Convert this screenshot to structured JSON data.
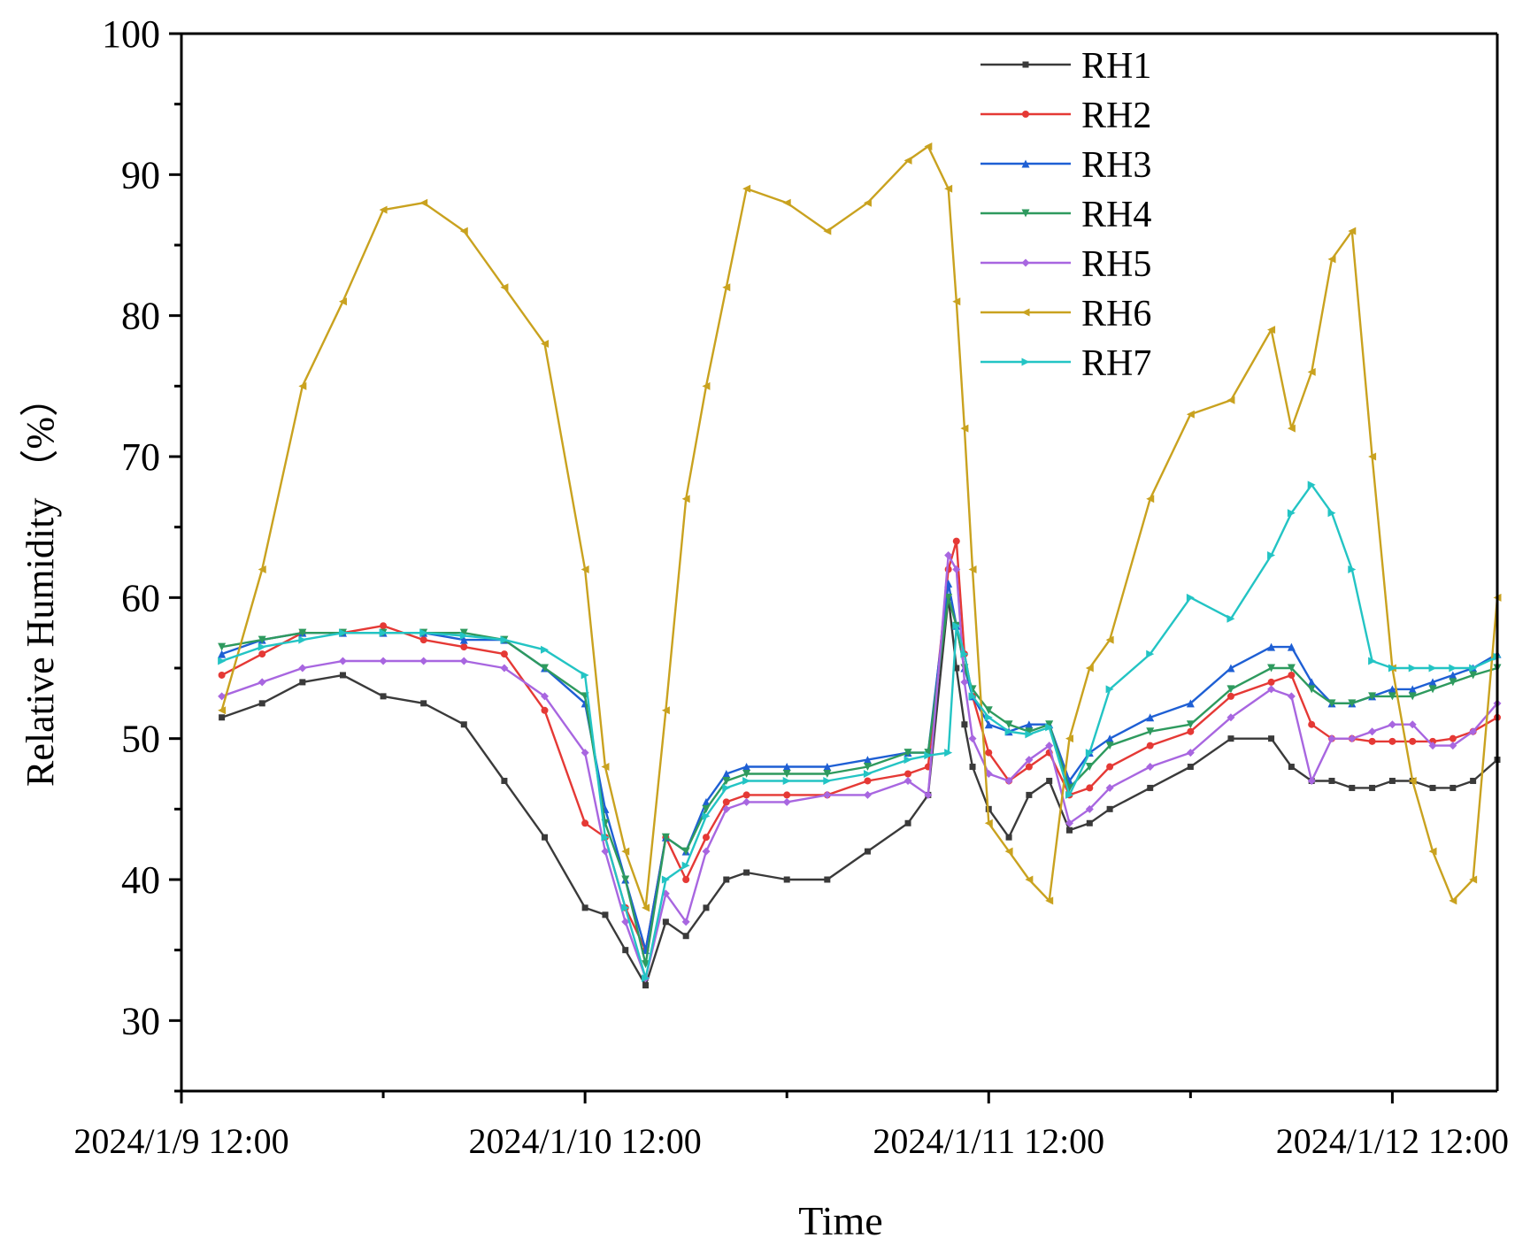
{
  "chart_data": {
    "type": "line",
    "title": "",
    "xlabel": "Time",
    "ylabel": "Relative Humidity （%）",
    "ylim": [
      25,
      100
    ],
    "yticks": [
      30,
      40,
      50,
      60,
      70,
      80,
      90,
      100
    ],
    "xlim": [
      0,
      3.26
    ],
    "x_unit": "days since 2024/1/9 12:00",
    "xticks": [
      {
        "x": 0,
        "label": "2024/1/9 12:00"
      },
      {
        "x": 1,
        "label": "2024/1/10 12:00"
      },
      {
        "x": 2,
        "label": "2024/1/11 12:00"
      },
      {
        "x": 3,
        "label": "2024/1/12 12:00"
      }
    ],
    "legend_position": "top-right",
    "grid": false,
    "x": [
      0.1,
      0.2,
      0.3,
      0.4,
      0.5,
      0.6,
      0.7,
      0.8,
      0.9,
      1.0,
      1.05,
      1.1,
      1.15,
      1.2,
      1.25,
      1.3,
      1.35,
      1.4,
      1.5,
      1.6,
      1.7,
      1.8,
      1.85,
      1.9,
      1.92,
      1.94,
      1.96,
      2.0,
      2.05,
      2.1,
      2.15,
      2.2,
      2.25,
      2.3,
      2.4,
      2.5,
      2.6,
      2.7,
      2.75,
      2.8,
      2.85,
      2.9,
      2.95,
      3.0,
      3.05,
      3.1,
      3.15,
      3.2,
      3.26
    ],
    "series": [
      {
        "name": "RH1",
        "color": "#3a3a3a",
        "marker": "square",
        "values": [
          51.5,
          52.5,
          54,
          54.5,
          53,
          52.5,
          51,
          47,
          43,
          38,
          37.5,
          35,
          32.5,
          37,
          36,
          38,
          40,
          40.5,
          40,
          40,
          42,
          44,
          46,
          60,
          55,
          51,
          48,
          45,
          43,
          46,
          47,
          43.5,
          44,
          45,
          46.5,
          48,
          50,
          50,
          48,
          47,
          47,
          46.5,
          46.5,
          47,
          47,
          46.5,
          46.5,
          47,
          48.5
        ]
      },
      {
        "name": "RH2",
        "color": "#e53935",
        "marker": "circle",
        "values": [
          54.5,
          56,
          57.5,
          57.5,
          58,
          57,
          56.5,
          56,
          52,
          44,
          43,
          38,
          35,
          43,
          40,
          43,
          45.5,
          46,
          46,
          46,
          47,
          47.5,
          48,
          62,
          64,
          56,
          53,
          49,
          47,
          48,
          49,
          46,
          46.5,
          48,
          49.5,
          50.5,
          53,
          54,
          54.5,
          51,
          50,
          50,
          49.8,
          49.8,
          49.8,
          49.8,
          50,
          50.5,
          51.5
        ]
      },
      {
        "name": "RH3",
        "color": "#1e5fd4",
        "marker": "triangle-up",
        "values": [
          56,
          57,
          57.5,
          57.5,
          57.5,
          57.5,
          57,
          57,
          55,
          52.5,
          45,
          40,
          35,
          43,
          42,
          45.5,
          47.5,
          48,
          48,
          48,
          48.5,
          49,
          49,
          61,
          58,
          55,
          53,
          51,
          50.5,
          51,
          51,
          47,
          49,
          50,
          51.5,
          52.5,
          55,
          56.5,
          56.5,
          54,
          52.5,
          52.5,
          53,
          53.5,
          53.5,
          54,
          54.5,
          55,
          56
        ]
      },
      {
        "name": "RH4",
        "color": "#2e9a5e",
        "marker": "triangle-down",
        "values": [
          56.5,
          57,
          57.5,
          57.5,
          57.5,
          57.5,
          57.5,
          57,
          55,
          53,
          44,
          40,
          34,
          43,
          42,
          45,
          47,
          47.5,
          47.5,
          47.5,
          48,
          49,
          49,
          60,
          58,
          55,
          53.5,
          52,
          51,
          50.5,
          51,
          46.5,
          48,
          49.5,
          50.5,
          51,
          53.5,
          55,
          55,
          53.5,
          52.5,
          52.5,
          53,
          53,
          53,
          53.5,
          54,
          54.5,
          55
        ]
      },
      {
        "name": "RH5",
        "color": "#a866e0",
        "marker": "diamond",
        "values": [
          53,
          54,
          55,
          55.5,
          55.5,
          55.5,
          55.5,
          55,
          53,
          49,
          42,
          37,
          33,
          39,
          37,
          42,
          45,
          45.5,
          45.5,
          46,
          46,
          47,
          46,
          63,
          62,
          54,
          50,
          47.5,
          47,
          48.5,
          49.5,
          44,
          45,
          46.5,
          48,
          49,
          51.5,
          53.5,
          53,
          47,
          50,
          50,
          50.5,
          51,
          51,
          49.5,
          49.5,
          50.5,
          52.5
        ]
      },
      {
        "name": "RH6",
        "color": "#c9a21f",
        "marker": "triangle-left",
        "values": [
          52,
          62,
          75,
          81,
          87.5,
          88,
          86,
          82,
          78,
          62,
          48,
          42,
          38,
          52,
          67,
          75,
          82,
          89,
          88,
          86,
          88,
          91,
          92,
          89,
          81,
          72,
          62,
          44,
          42,
          40,
          38.5,
          50,
          55,
          57,
          67,
          73,
          74,
          79,
          72,
          76,
          84,
          86,
          70,
          55,
          47,
          42,
          38.5,
          40,
          60
        ]
      },
      {
        "name": "RH7",
        "color": "#23c4c4",
        "marker": "triangle-right",
        "values": [
          55.5,
          56.5,
          57,
          57.5,
          57.5,
          57.5,
          57.3,
          57,
          56.3,
          54.5,
          43,
          38,
          33,
          40,
          41,
          44.5,
          46.5,
          47,
          47,
          47,
          47.5,
          48.5,
          48.8,
          49,
          58,
          56,
          53,
          51.5,
          50.5,
          50.3,
          50.8,
          46,
          49,
          53.5,
          56,
          60,
          58.5,
          63,
          66,
          68,
          66,
          62,
          55.5,
          55,
          55,
          55,
          55,
          55,
          55.8
        ]
      }
    ]
  }
}
